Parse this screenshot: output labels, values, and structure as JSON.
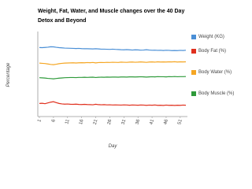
{
  "chart_data": {
    "type": "line",
    "title": "Weight, Fat, Water, and Muscle changes over the 40 Day Detox and Beyond",
    "x_label": "Day",
    "y_label": "Percentage",
    "x": [
      1,
      2,
      3,
      4,
      5,
      6,
      7,
      8,
      9,
      10,
      11,
      12,
      13,
      14,
      15,
      16,
      17,
      18,
      19,
      20,
      21,
      22,
      23,
      24,
      25,
      26,
      27,
      28,
      29,
      30,
      31,
      32,
      33,
      34,
      35,
      36,
      37,
      38,
      39,
      40,
      41,
      42,
      43,
      44,
      45,
      46,
      47,
      48,
      49,
      50,
      51,
      52,
      53
    ],
    "xlim": [
      1,
      53
    ],
    "xticks": [
      1,
      6,
      11,
      16,
      21,
      26,
      31,
      36,
      41,
      46,
      51
    ],
    "ylim": [
      7,
      85
    ],
    "series": [
      {
        "name": "Weight (KG)",
        "color": "#4a8fd6",
        "values": [
          70.3,
          70.2,
          70.4,
          70.6,
          71.0,
          70.9,
          70.5,
          70.2,
          70.0,
          69.8,
          69.7,
          69.6,
          69.5,
          69.4,
          69.5,
          69.3,
          69.2,
          69.2,
          69.1,
          69.0,
          69.2,
          69.0,
          68.8,
          68.8,
          68.7,
          68.6,
          68.8,
          68.6,
          68.5,
          68.3,
          68.2,
          68.4,
          68.2,
          68.0,
          68.2,
          68.1,
          67.9,
          68.0,
          68.3,
          68.0,
          67.8,
          67.9,
          67.7,
          67.8,
          67.6,
          67.8,
          67.7,
          67.5,
          67.6,
          67.5,
          67.7,
          67.6,
          67.8
        ]
      },
      {
        "name": "Body Fat (%)",
        "color": "#e0301e",
        "values": [
          19.0,
          19.2,
          18.8,
          19.5,
          20.2,
          20.6,
          19.8,
          19.0,
          18.6,
          18.4,
          18.5,
          18.3,
          18.2,
          18.4,
          18.1,
          18.0,
          18.2,
          18.0,
          17.9,
          17.8,
          18.3,
          17.9,
          17.8,
          17.9,
          17.7,
          17.8,
          17.6,
          17.7,
          17.6,
          17.5,
          17.7,
          17.6,
          17.4,
          17.6,
          17.5,
          17.4,
          17.6,
          17.5,
          17.3,
          17.5,
          17.4,
          17.6,
          17.3,
          17.4,
          17.2,
          17.5,
          17.3,
          17.4,
          17.2,
          17.4,
          17.3,
          17.5,
          17.4
        ]
      },
      {
        "name": "Body Water (%)",
        "color": "#f5a623",
        "values": [
          56.0,
          55.8,
          55.6,
          55.2,
          54.8,
          54.6,
          55.0,
          55.5,
          55.8,
          56.0,
          56.1,
          56.2,
          56.3,
          56.1,
          56.3,
          56.4,
          56.3,
          56.5,
          56.4,
          56.6,
          56.2,
          56.5,
          56.6,
          56.5,
          56.7,
          56.6,
          56.8,
          56.7,
          56.6,
          56.9,
          56.8,
          56.7,
          56.9,
          57.0,
          56.8,
          56.9,
          57.1,
          56.9,
          56.7,
          57.0,
          57.1,
          56.9,
          57.2,
          57.0,
          57.1,
          57.0,
          57.2,
          57.1,
          57.3,
          57.0,
          57.2,
          57.1,
          57.2
        ]
      },
      {
        "name": "Body Muscle (%)",
        "color": "#2e9a3a",
        "values": [
          42.6,
          42.5,
          42.3,
          42.0,
          41.8,
          41.6,
          41.9,
          42.2,
          42.4,
          42.6,
          42.7,
          42.8,
          42.8,
          42.7,
          42.9,
          42.9,
          43.0,
          42.9,
          43.0,
          43.1,
          42.8,
          43.0,
          43.1,
          43.0,
          43.2,
          43.1,
          43.2,
          43.2,
          43.1,
          43.3,
          43.3,
          43.2,
          43.4,
          43.4,
          43.3,
          43.4,
          43.5,
          43.4,
          43.2,
          43.4,
          43.5,
          43.4,
          43.6,
          43.5,
          43.5,
          43.4,
          43.6,
          43.5,
          43.7,
          43.5,
          43.6,
          43.6,
          43.7
        ]
      }
    ]
  }
}
